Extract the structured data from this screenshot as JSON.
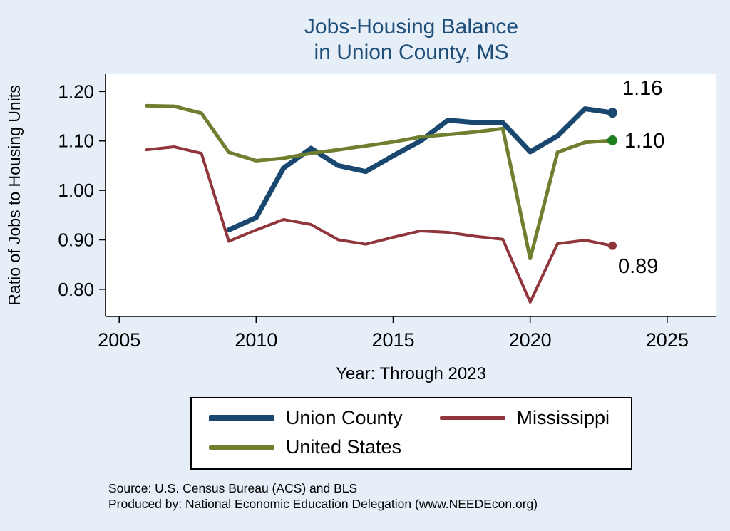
{
  "accent": "#1f4e79",
  "background": "#e6eff8",
  "title": {
    "line1": "Jobs-Housing Balance",
    "line2": "in Union County, MS"
  },
  "legend": {
    "items": [
      {
        "label": "Union County",
        "color": "#1a476f",
        "thickness": 9
      },
      {
        "label": "Mississippi",
        "color": "#90353b",
        "thickness": 5
      },
      {
        "label": "United States",
        "color": "#6e7f2f",
        "thickness": 6
      }
    ]
  },
  "footer": {
    "source": "Source: U.S. Census Bureau (ACS) and BLS",
    "produced": "Produced by: National Economic Education Delegation (www.NEEDEcon.org)"
  },
  "chart_data": {
    "type": "line",
    "title": "Jobs-Housing Balance in Union County, MS",
    "xlabel": "Year: Through 2023",
    "ylabel": "Ratio of Jobs to Housing Units",
    "xlim": [
      2004.5,
      2026.8
    ],
    "ylim": [
      0.745,
      1.235
    ],
    "xticks": [
      2005,
      2010,
      2015,
      2020,
      2025
    ],
    "yticks": [
      0.8,
      0.9,
      1.0,
      1.1,
      1.2
    ],
    "grid": false,
    "legend_position": "bottom",
    "plot_background": "#ffffff",
    "series": [
      {
        "name": "Union County",
        "color": "#1a476f",
        "width": 7,
        "end_dot": true,
        "dot_color": "#1a476f",
        "dot_radius": 7,
        "end_label": "1.16",
        "label_offset": [
          14,
          -25
        ],
        "points": [
          [
            2009,
            0.92
          ],
          [
            2010,
            0.945
          ],
          [
            2011,
            1.045
          ],
          [
            2012,
            1.085
          ],
          [
            2013,
            1.05
          ],
          [
            2014,
            1.038
          ],
          [
            2015,
            1.07
          ],
          [
            2016,
            1.1
          ],
          [
            2017,
            1.142
          ],
          [
            2018,
            1.137
          ],
          [
            2019,
            1.137
          ],
          [
            2020,
            1.078
          ],
          [
            2021,
            1.11
          ],
          [
            2022,
            1.165
          ],
          [
            2023,
            1.157
          ]
        ]
      },
      {
        "name": "Mississippi",
        "color": "#90353b",
        "width": 4,
        "end_dot": true,
        "dot_color": "#90353b",
        "dot_radius": 6,
        "end_label": "0.89",
        "label_offset": [
          8,
          38
        ],
        "points": [
          [
            2006,
            1.082
          ],
          [
            2007,
            1.088
          ],
          [
            2008,
            1.075
          ],
          [
            2009,
            0.897
          ],
          [
            2010,
            0.92
          ],
          [
            2011,
            0.941
          ],
          [
            2012,
            0.931
          ],
          [
            2013,
            0.9
          ],
          [
            2014,
            0.891
          ],
          [
            2015,
            0.905
          ],
          [
            2016,
            0.918
          ],
          [
            2017,
            0.915
          ],
          [
            2018,
            0.907
          ],
          [
            2019,
            0.901
          ],
          [
            2020,
            0.774
          ],
          [
            2021,
            0.892
          ],
          [
            2022,
            0.899
          ],
          [
            2023,
            0.888
          ]
        ]
      },
      {
        "name": "United States",
        "color": "#6e7f2f",
        "width": 5,
        "end_dot": true,
        "dot_color": "#1e7d1e",
        "dot_radius": 7,
        "end_label": "1.10",
        "label_offset": [
          17,
          10
        ],
        "points": [
          [
            2006,
            1.171
          ],
          [
            2007,
            1.17
          ],
          [
            2008,
            1.156
          ],
          [
            2009,
            1.077
          ],
          [
            2010,
            1.06
          ],
          [
            2011,
            1.065
          ],
          [
            2012,
            1.075
          ],
          [
            2013,
            1.082
          ],
          [
            2014,
            1.09
          ],
          [
            2015,
            1.098
          ],
          [
            2016,
            1.108
          ],
          [
            2017,
            1.113
          ],
          [
            2018,
            1.118
          ],
          [
            2019,
            1.125
          ],
          [
            2020,
            0.862
          ],
          [
            2021,
            1.077
          ],
          [
            2022,
            1.097
          ],
          [
            2023,
            1.101
          ]
        ]
      }
    ]
  }
}
